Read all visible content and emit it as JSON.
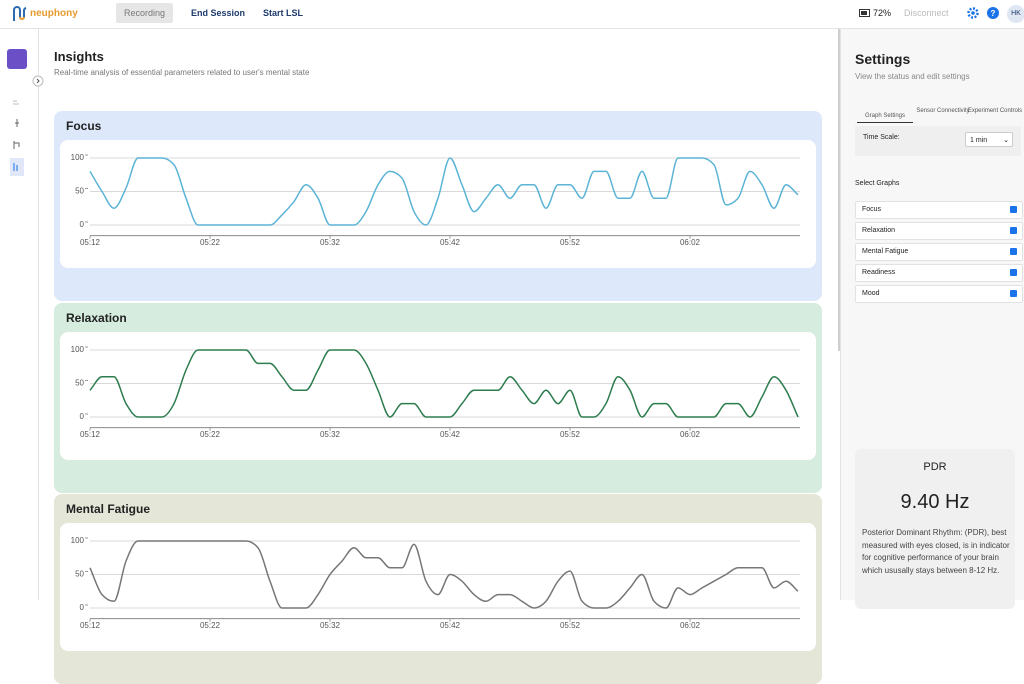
{
  "header": {
    "logo": "neuphony",
    "nav": [
      "Recording",
      "End Session",
      "Start LSL"
    ],
    "battery": "72%",
    "disconnect": "Disconnect",
    "avatar": "HK"
  },
  "insights": {
    "title": "Insights",
    "subtitle": "Real-time analysis of essential parameters related to user's mental state"
  },
  "chart_data": [
    {
      "type": "line",
      "title": "Focus",
      "color": "#5bb4d6",
      "background": "#dde8fb",
      "categories": [
        "05:12",
        null,
        null,
        null,
        null,
        null,
        null,
        null,
        null,
        null,
        "05:22",
        null,
        null,
        null,
        null,
        null,
        null,
        null,
        null,
        null,
        "05:32",
        null,
        null,
        null,
        null,
        null,
        null,
        null,
        null,
        null,
        "05:42",
        null,
        null,
        null,
        null,
        null,
        null,
        null,
        null,
        null,
        "05:52",
        null,
        null,
        null,
        null,
        null,
        null,
        null,
        null,
        null,
        "06:02",
        null,
        null,
        null,
        null,
        null,
        null,
        null,
        null,
        null
      ],
      "values": [
        80,
        50,
        25,
        55,
        100,
        100,
        100,
        90,
        40,
        0,
        0,
        0,
        0,
        0,
        0,
        0,
        15,
        35,
        60,
        40,
        0,
        0,
        0,
        20,
        60,
        80,
        70,
        20,
        0,
        40,
        100,
        60,
        20,
        40,
        60,
        40,
        60,
        60,
        25,
        60,
        60,
        40,
        80,
        80,
        40,
        40,
        80,
        40,
        40,
        100,
        100,
        100,
        90,
        30,
        40,
        80,
        60,
        25,
        60,
        45
      ],
      "ylim": [
        -16,
        110
      ],
      "yticks": [
        0,
        50,
        100
      ],
      "grid": true
    },
    {
      "type": "line",
      "title": "Relaxation",
      "color": "#2e7d4f",
      "background": "#d5ecdf",
      "categories": [
        "05:12",
        null,
        null,
        null,
        null,
        null,
        null,
        null,
        null,
        null,
        "05:22",
        null,
        null,
        null,
        null,
        null,
        null,
        null,
        null,
        null,
        "05:32",
        null,
        null,
        null,
        null,
        null,
        null,
        null,
        null,
        null,
        "05:42",
        null,
        null,
        null,
        null,
        null,
        null,
        null,
        null,
        null,
        "05:52",
        null,
        null,
        null,
        null,
        null,
        null,
        null,
        null,
        null,
        "06:02",
        null,
        null,
        null,
        null,
        null,
        null,
        null,
        null,
        null
      ],
      "values": [
        40,
        60,
        60,
        20,
        0,
        0,
        0,
        20,
        70,
        100,
        100,
        100,
        100,
        100,
        80,
        80,
        60,
        40,
        40,
        70,
        100,
        100,
        100,
        80,
        40,
        0,
        20,
        20,
        0,
        0,
        0,
        20,
        40,
        40,
        40,
        60,
        40,
        20,
        40,
        20,
        40,
        0,
        0,
        20,
        60,
        40,
        0,
        20,
        20,
        0,
        0,
        0,
        0,
        20,
        20,
        0,
        30,
        60,
        40,
        0
      ],
      "ylim": [
        -16,
        110
      ],
      "yticks": [
        0,
        50,
        100
      ],
      "grid": true
    },
    {
      "type": "line",
      "title": "Mental Fatigue",
      "color": "#777777",
      "background": "#e4e6d8",
      "categories": [
        "05:12",
        null,
        null,
        null,
        null,
        null,
        null,
        null,
        null,
        null,
        "05:22",
        null,
        null,
        null,
        null,
        null,
        null,
        null,
        null,
        null,
        "05:32",
        null,
        null,
        null,
        null,
        null,
        null,
        null,
        null,
        null,
        "05:42",
        null,
        null,
        null,
        null,
        null,
        null,
        null,
        null,
        null,
        "05:52",
        null,
        null,
        null,
        null,
        null,
        null,
        null,
        null,
        null,
        "06:02",
        null,
        null,
        null,
        null,
        null,
        null,
        null,
        null,
        null
      ],
      "values": [
        60,
        20,
        10,
        70,
        100,
        100,
        100,
        100,
        100,
        100,
        100,
        100,
        100,
        100,
        90,
        40,
        0,
        0,
        0,
        20,
        50,
        70,
        90,
        75,
        75,
        60,
        60,
        95,
        40,
        20,
        50,
        40,
        20,
        10,
        20,
        20,
        10,
        0,
        10,
        40,
        55,
        10,
        0,
        0,
        10,
        30,
        50,
        10,
        0,
        30,
        20,
        30,
        40,
        50,
        60,
        60,
        60,
        30,
        40,
        25
      ],
      "ylim": [
        -16,
        110
      ],
      "yticks": [
        0,
        50,
        100
      ],
      "grid": true
    }
  ],
  "settings": {
    "title": "Settings",
    "subtitle": "View the status and edit settings",
    "tabs": [
      "Graph Settings",
      "Sensor Connectivity",
      "Experiment Controls"
    ],
    "time_scale_label": "Time Scale:",
    "time_scale_value": "1 min",
    "select_graphs_label": "Select Graphs",
    "graphs": [
      {
        "label": "Focus",
        "checked": true
      },
      {
        "label": "Relaxation",
        "checked": true
      },
      {
        "label": "Mental Fatigue",
        "checked": true
      },
      {
        "label": "Readiness",
        "checked": true
      },
      {
        "label": "Mood",
        "checked": true
      }
    ]
  },
  "pdr": {
    "title": "PDR",
    "value": "9.40 Hz",
    "description": "Posterior Dominant Rhythm: (PDR), best measured with eyes closed, is in indicator for cognitive performance of your brain which ususally stays between 8-12 Hz."
  }
}
